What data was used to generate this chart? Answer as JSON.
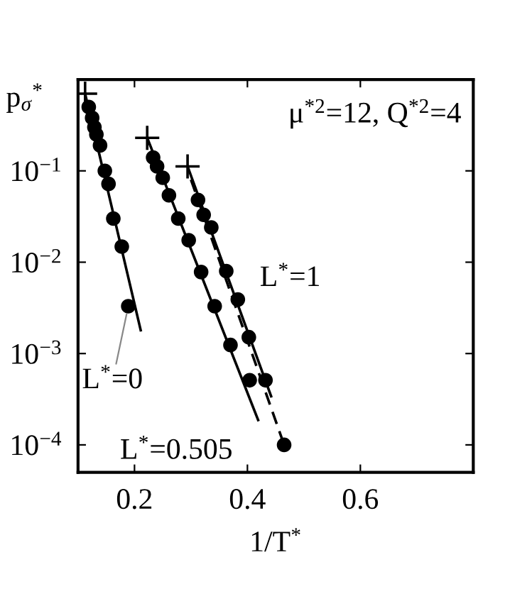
{
  "chart_data": {
    "type": "scatter",
    "xlabel": "1/T$^{*}$",
    "ylabel": "p$_{σ}$$^{*}$",
    "log": "y",
    "grid": false,
    "xlim": [
      0.1,
      0.8
    ],
    "xticks": [
      0.2,
      0.4,
      0.6
    ],
    "ylim": [
      5e-05,
      1
    ],
    "yticks": [
      {
        "value": 0.1,
        "label": "10$^{−1}$"
      },
      {
        "value": 0.01,
        "label": "10$^{−2}$"
      },
      {
        "value": 0.001,
        "label": "10$^{−3}$"
      },
      {
        "value": 0.0001,
        "label": "10$^{−4}$"
      }
    ],
    "series": [
      {
        "marker": "circle",
        "color": "#000000",
        "x": [
          0.119,
          0.125,
          0.129,
          0.1325,
          0.139,
          0.1475,
          0.154,
          0.1625,
          0.1775,
          0.189
        ],
        "values": [
          0.5,
          0.38,
          0.3,
          0.25,
          0.19,
          0.1,
          0.072,
          0.03,
          0.0148,
          0.0033
        ]
      },
      {
        "marker": "circle",
        "color": "#000000",
        "x": [
          0.233,
          0.24,
          0.25,
          0.261,
          0.2775,
          0.296,
          0.318,
          0.342,
          0.37,
          0.404
        ],
        "values": [
          0.14,
          0.112,
          0.084,
          0.054,
          0.03,
          0.0174,
          0.0078,
          0.0033,
          0.00124,
          0.00051
        ]
      },
      {
        "marker": "circle",
        "color": "#000000",
        "x": [
          0.3125,
          0.3225,
          0.336,
          0.3625,
          0.383,
          0.4025,
          0.432,
          0.465
        ],
        "values": [
          0.048,
          0.033,
          0.024,
          0.008,
          0.0039,
          0.00151,
          0.00051,
          0.0001
        ]
      },
      {
        "type": "scatter",
        "marker": "cross",
        "color": "#000000",
        "x": [
          0.1125,
          0.2225,
          0.294
        ],
        "values": [
          0.7,
          0.23,
          0.112
        ]
      },
      {
        "type": "line",
        "marker": "none",
        "line_style": "solid",
        "color": "#000000",
        "x": [
          0.1125,
          0.211
        ],
        "values": [
          0.7,
          0.0018
        ]
      },
      {
        "type": "line",
        "marker": "none",
        "line_style": "solid",
        "color": "#000000",
        "x": [
          0.2225,
          0.419
        ],
        "values": [
          0.23,
          0.000187
        ]
      },
      {
        "type": "line",
        "marker": "none",
        "line_style": "solid",
        "color": "#000000",
        "x": [
          0.294,
          0.442
        ],
        "values": [
          0.112,
          0.00034
        ]
      },
      {
        "type": "line",
        "marker": "none",
        "line_style": "dashed",
        "color": "#000000",
        "x": [
          0.3,
          0.465
        ],
        "values": [
          0.08,
          0.0001
        ]
      }
    ],
    "annotations": [
      "μ$^{*2}$=12, Q$^{*2}$=4",
      {
        "text": "L$^{*}$=0",
        "x": 0.189,
        "y": 0.0033
      },
      {
        "text": "L$^{*}$=0.505",
        "x": 0.419,
        "y": 0.000187
      },
      {
        "text": "L$^{*}$=1",
        "x": 0.38,
        "y": 0.004
      }
    ]
  }
}
